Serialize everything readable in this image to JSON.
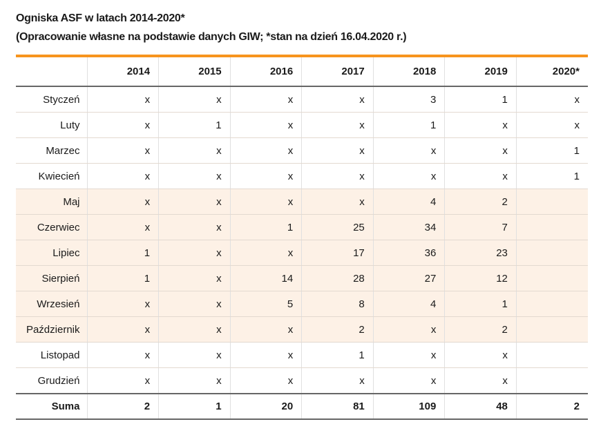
{
  "title": {
    "line1": "Ogniska ASF w latach 2014-2020*",
    "line2": "(Opracowanie własne na podstawie danych GIW; *stan na dzień 16.04.2020 r.)"
  },
  "colors": {
    "accent_bar": "#f7941d",
    "shaded_row_bg": "#fdf1e6",
    "text": "#1a1a1a"
  },
  "table": {
    "columns": [
      "",
      "2014",
      "2015",
      "2016",
      "2017",
      "2018",
      "2019",
      "2020*"
    ],
    "rows": [
      {
        "month": "Styczeń",
        "values": [
          "x",
          "x",
          "x",
          "x",
          "3",
          "1",
          "x"
        ],
        "shaded": false
      },
      {
        "month": "Luty",
        "values": [
          "x",
          "1",
          "x",
          "x",
          "1",
          "x",
          "x"
        ],
        "shaded": false
      },
      {
        "month": "Marzec",
        "values": [
          "x",
          "x",
          "x",
          "x",
          "x",
          "x",
          "1"
        ],
        "shaded": false
      },
      {
        "month": "Kwiecień",
        "values": [
          "x",
          "x",
          "x",
          "x",
          "x",
          "x",
          "1"
        ],
        "shaded": false
      },
      {
        "month": "Maj",
        "values": [
          "x",
          "x",
          "x",
          "x",
          "4",
          "2",
          ""
        ],
        "shaded": true
      },
      {
        "month": "Czerwiec",
        "values": [
          "x",
          "x",
          "1",
          "25",
          "34",
          "7",
          ""
        ],
        "shaded": true
      },
      {
        "month": "Lipiec",
        "values": [
          "1",
          "x",
          "x",
          "17",
          "36",
          "23",
          ""
        ],
        "shaded": true
      },
      {
        "month": "Sierpień",
        "values": [
          "1",
          "x",
          "14",
          "28",
          "27",
          "12",
          ""
        ],
        "shaded": true
      },
      {
        "month": "Wrzesień",
        "values": [
          "x",
          "x",
          "5",
          "8",
          "4",
          "1",
          ""
        ],
        "shaded": true
      },
      {
        "month": "Październik",
        "values": [
          "x",
          "x",
          "x",
          "2",
          "x",
          "2",
          ""
        ],
        "shaded": true
      },
      {
        "month": "Listopad",
        "values": [
          "x",
          "x",
          "x",
          "1",
          "x",
          "x",
          ""
        ],
        "shaded": false
      },
      {
        "month": "Grudzień",
        "values": [
          "x",
          "x",
          "x",
          "x",
          "x",
          "x",
          ""
        ],
        "shaded": false
      }
    ],
    "total": {
      "label": "Suma",
      "values": [
        "2",
        "1",
        "20",
        "81",
        "109",
        "48",
        "2"
      ]
    }
  }
}
